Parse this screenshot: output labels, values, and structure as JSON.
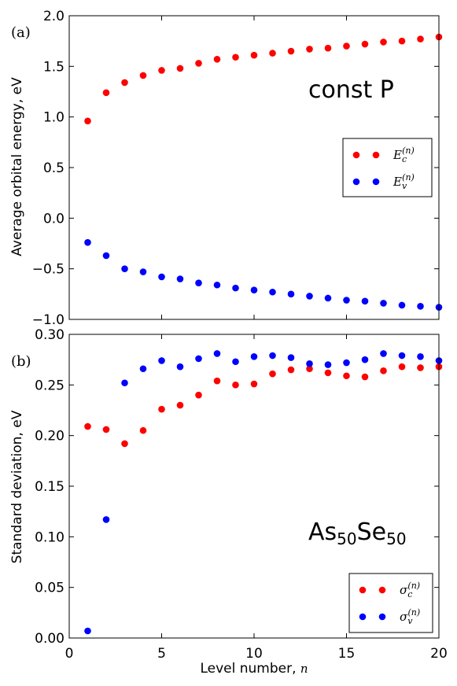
{
  "chart_data": [
    {
      "type": "scatter",
      "panel_label": "(a)",
      "annotation": "const P",
      "ylabel": "Average orbital energy, eV",
      "xlim": [
        0,
        20
      ],
      "ylim": [
        -1.0,
        2.0
      ],
      "xticks": [
        "0",
        "5",
        "10",
        "15",
        "20"
      ],
      "yticks": [
        "−1.0",
        "−0.5",
        "0.0",
        "0.5",
        "1.0",
        "1.5",
        "2.0"
      ],
      "legend_position": "center-right",
      "x": [
        1,
        2,
        3,
        4,
        5,
        6,
        7,
        8,
        9,
        10,
        11,
        12,
        13,
        14,
        15,
        16,
        17,
        18,
        19,
        20
      ],
      "series": [
        {
          "legend_main": "E",
          "legend_sub": "c",
          "legend_sup": "(n)",
          "color": "#ff0000",
          "values": [
            0.96,
            1.24,
            1.34,
            1.41,
            1.46,
            1.48,
            1.53,
            1.57,
            1.59,
            1.61,
            1.63,
            1.65,
            1.67,
            1.68,
            1.7,
            1.72,
            1.74,
            1.75,
            1.77,
            1.79
          ]
        },
        {
          "legend_main": "E",
          "legend_sub": "v",
          "legend_sup": "(n)",
          "color": "#0000ff",
          "values": [
            -0.24,
            -0.37,
            -0.5,
            -0.53,
            -0.58,
            -0.6,
            -0.64,
            -0.66,
            -0.69,
            -0.71,
            -0.73,
            -0.75,
            -0.77,
            -0.79,
            -0.81,
            -0.82,
            -0.84,
            -0.86,
            -0.87,
            -0.88
          ]
        }
      ]
    },
    {
      "type": "scatter",
      "panel_label": "(b)",
      "annotation_main": "As",
      "annotation_sub1": "50",
      "annotation_mid": "Se",
      "annotation_sub2": "50",
      "xlabel": "Level number, ",
      "xlabel_math": "n",
      "ylabel": "Standard deviation, eV",
      "xlim": [
        0,
        20
      ],
      "ylim": [
        0.0,
        0.3
      ],
      "xticks": [
        "0",
        "5",
        "10",
        "15",
        "20"
      ],
      "yticks": [
        "0.00",
        "0.05",
        "0.10",
        "0.15",
        "0.20",
        "0.25",
        "0.30"
      ],
      "legend_position": "lower-right",
      "x": [
        1,
        2,
        3,
        4,
        5,
        6,
        7,
        8,
        9,
        10,
        11,
        12,
        13,
        14,
        15,
        16,
        17,
        18,
        19,
        20
      ],
      "series": [
        {
          "legend_main": "σ",
          "legend_sub": "c",
          "legend_sup": "(n)",
          "color": "#ff0000",
          "values": [
            0.209,
            0.206,
            0.192,
            0.205,
            0.226,
            0.23,
            0.24,
            0.254,
            0.25,
            0.251,
            0.261,
            0.265,
            0.266,
            0.262,
            0.259,
            0.258,
            0.264,
            0.268,
            0.267,
            0.268
          ]
        },
        {
          "legend_main": "σ",
          "legend_sub": "v",
          "legend_sup": "(n)",
          "color": "#0000ff",
          "values": [
            0.007,
            0.117,
            0.252,
            0.266,
            0.274,
            0.268,
            0.276,
            0.281,
            0.273,
            0.278,
            0.279,
            0.277,
            0.271,
            0.27,
            0.272,
            0.275,
            0.281,
            0.279,
            0.278,
            0.274
          ]
        }
      ]
    }
  ]
}
